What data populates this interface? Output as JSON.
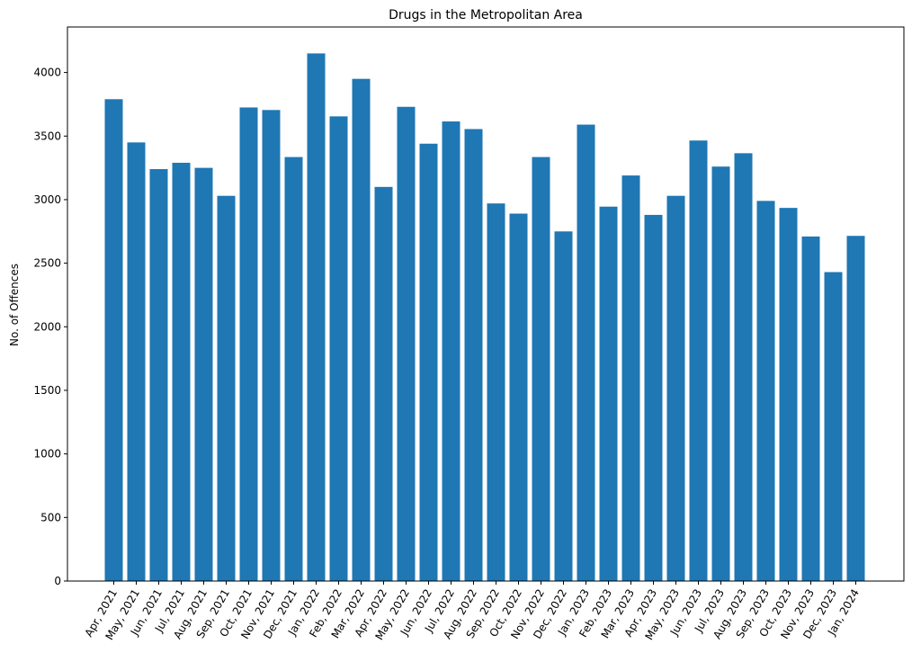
{
  "chart_data": {
    "type": "bar",
    "title": "Drugs in the Metropolitan Area",
    "xlabel": "",
    "ylabel": "No. of Offences",
    "ylim": [
      0,
      4358
    ],
    "yticks": [
      0,
      500,
      1000,
      1500,
      2000,
      2500,
      3000,
      3500,
      4000
    ],
    "grid": false,
    "bar_color": "#1f77b4",
    "categories": [
      "Apr, 2021",
      "May, 2021",
      "Jun, 2021",
      "Jul, 2021",
      "Aug, 2021",
      "Sep, 2021",
      "Oct, 2021",
      "Nov, 2021",
      "Dec, 2021",
      "Jan, 2022",
      "Feb, 2022",
      "Mar, 2022",
      "Apr, 2022",
      "May, 2022",
      "Jun, 2022",
      "Jul, 2022",
      "Aug, 2022",
      "Sep, 2022",
      "Oct, 2022",
      "Nov, 2022",
      "Dec, 2022",
      "Jan, 2023",
      "Feb, 2023",
      "Mar, 2023",
      "Apr, 2023",
      "May, 2023",
      "Jun, 2023",
      "Jul, 2023",
      "Aug, 2023",
      "Sep, 2023",
      "Oct, 2023",
      "Nov, 2023",
      "Dec, 2023",
      "Jan, 2024"
    ],
    "values": [
      3790,
      3450,
      3240,
      3290,
      3250,
      3030,
      3725,
      3705,
      3335,
      4150,
      3655,
      3950,
      3100,
      3730,
      3440,
      3615,
      3555,
      2970,
      2890,
      3335,
      2750,
      3590,
      2945,
      3190,
      2880,
      3030,
      3465,
      3260,
      3365,
      2990,
      2935,
      2710,
      2430,
      2715
    ]
  }
}
